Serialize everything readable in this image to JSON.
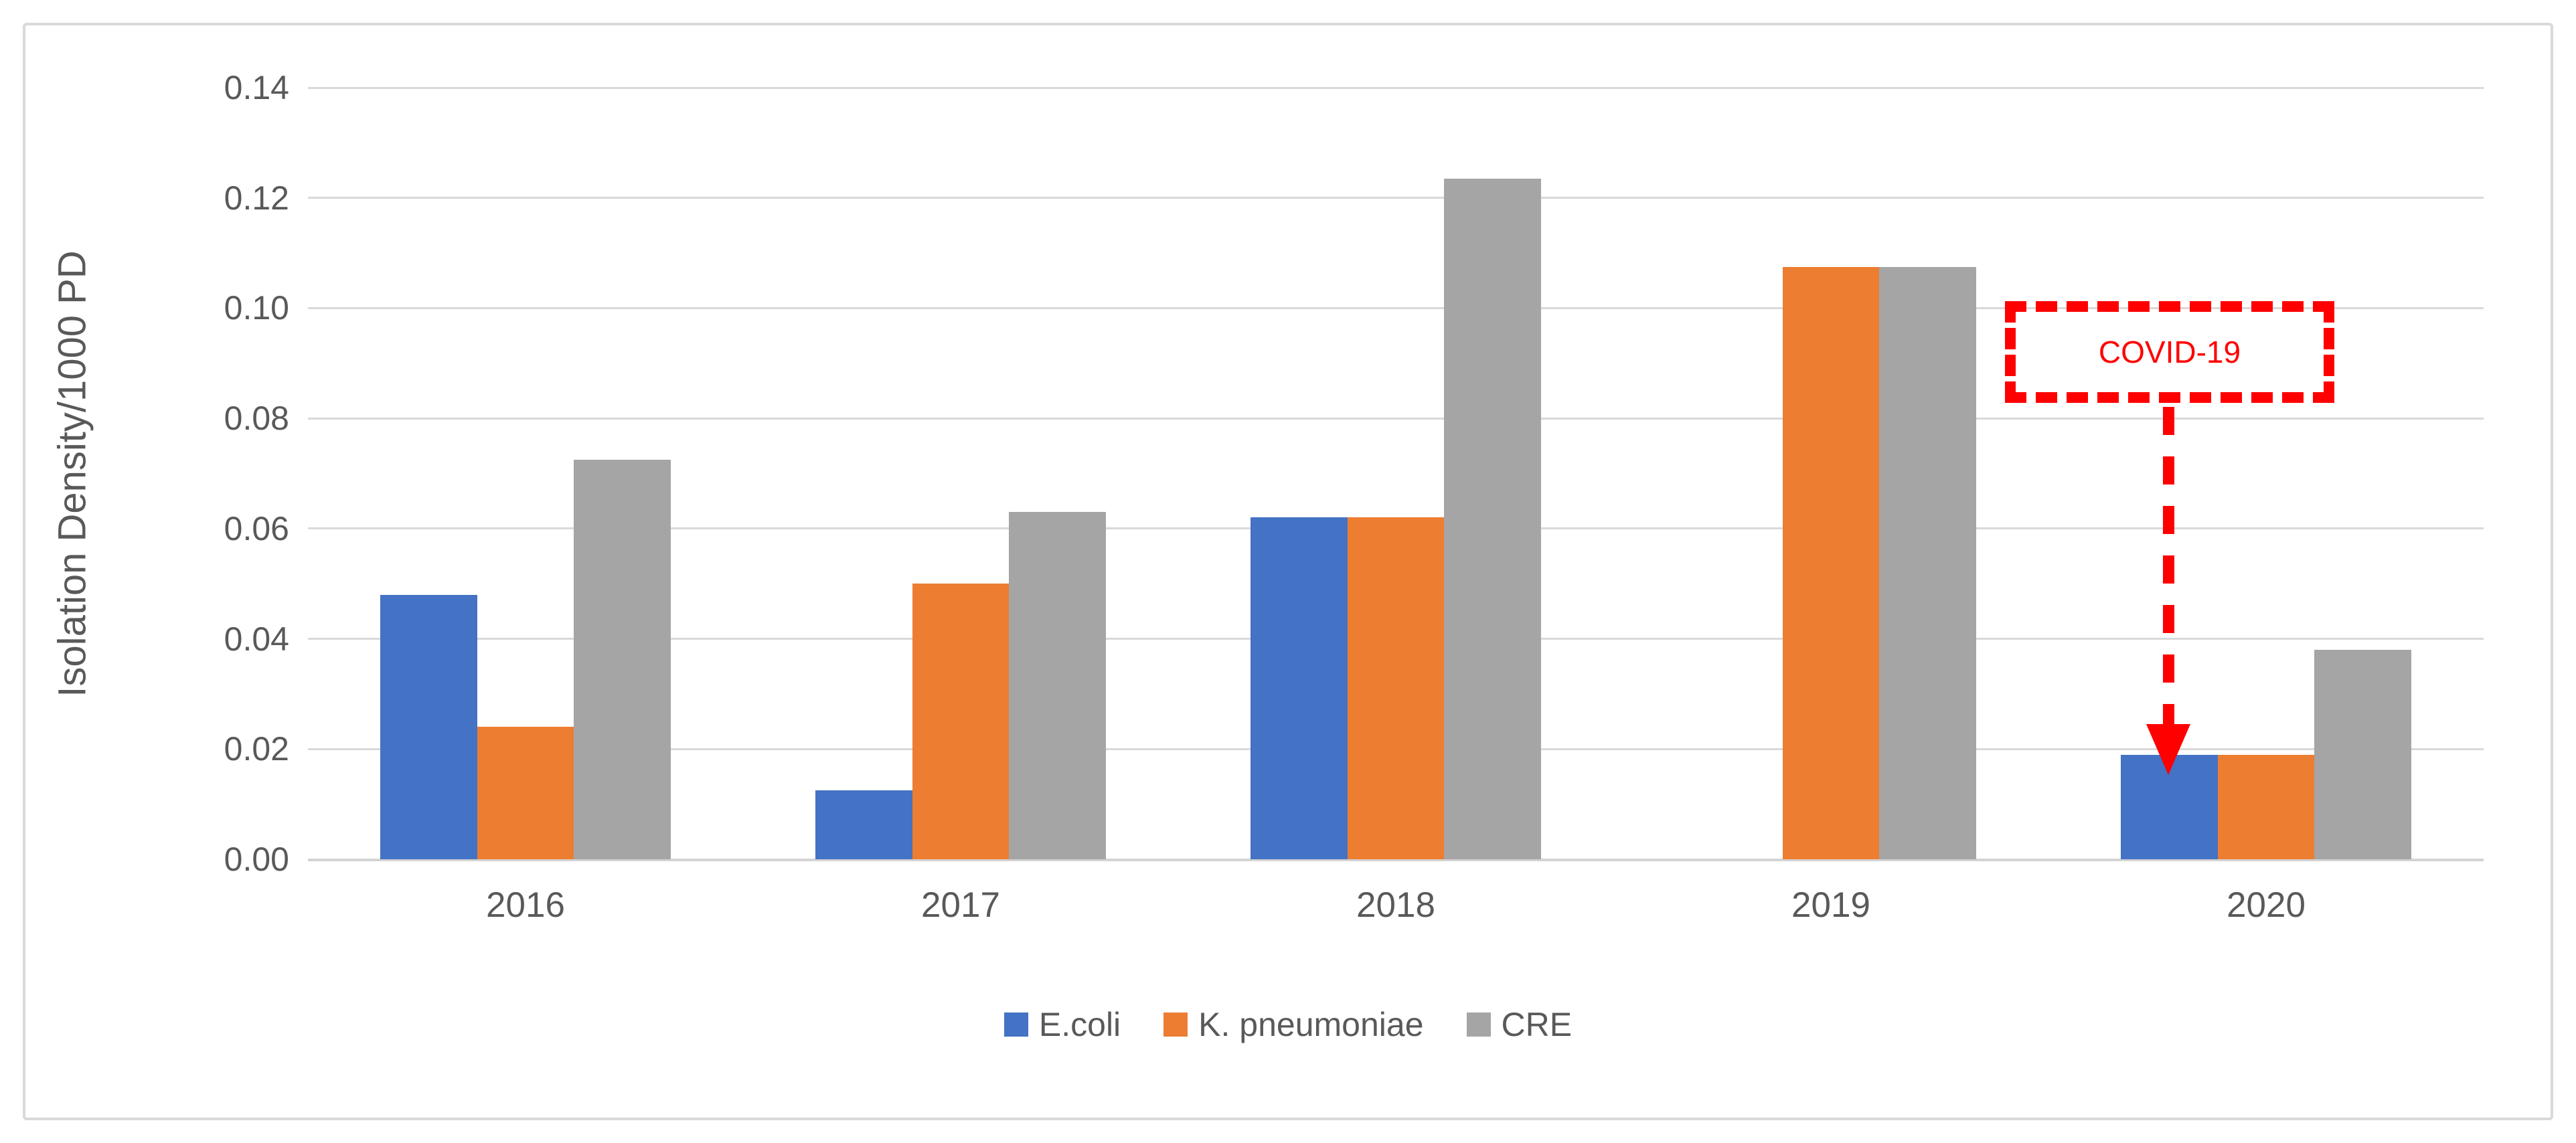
{
  "chart_data": {
    "type": "bar",
    "title": "",
    "xlabel": "",
    "ylabel": "Isolation Density/1000 PD",
    "categories": [
      "2016",
      "2017",
      "2018",
      "2019",
      "2020"
    ],
    "series": [
      {
        "name": "E.coli",
        "color": "#4472C4",
        "values": [
          0.048,
          0.0125,
          0.062,
          0,
          0.019
        ]
      },
      {
        "name": "K. pneumoniae",
        "color": "#ED7D31",
        "values": [
          0.024,
          0.05,
          0.062,
          0.1075,
          0.019
        ]
      },
      {
        "name": "CRE",
        "color": "#A5A5A5",
        "values": [
          0.0725,
          0.063,
          0.1235,
          0.1075,
          0.038
        ]
      }
    ],
    "ylim": [
      0,
      0.14
    ],
    "ytick_step": 0.02,
    "ytick_labels": [
      "0.00",
      "0.02",
      "0.04",
      "0.06",
      "0.08",
      "0.10",
      "0.12",
      "0.14"
    ],
    "grid": "horizontal",
    "legend_position": "bottom-center",
    "annotation": {
      "text": "COVID-19",
      "color": "#FF0000",
      "style": "dashed-box-with-down-arrow",
      "points_to": {
        "category": "2020",
        "series": "E.coli"
      }
    },
    "colors": {
      "gridline": "#D9D9D9",
      "axis_text": "#595959",
      "frame_border": "#D9D9D9",
      "background": "#FFFFFF"
    }
  }
}
